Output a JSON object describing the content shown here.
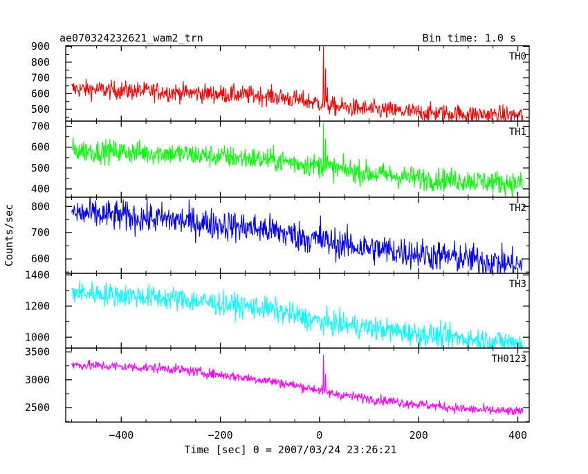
{
  "header": {
    "left": "ae070324232621_wam2_trn",
    "right": "Bin time: 1.0 s"
  },
  "chart_data": {
    "type": "line",
    "xlabel": "Time [sec] 0 = 2007/03/24 23:26:21",
    "ylabel": "Counts/sec",
    "xlim": [
      -512,
      423
    ],
    "x_ticks": [
      -400,
      -200,
      0,
      200,
      400
    ],
    "x_tick_labels": [
      "−400",
      "−200",
      "0",
      "200",
      "400"
    ],
    "grid": false,
    "panels": [
      {
        "name": "TH0",
        "color": "#ff0000",
        "ylim": [
          425,
          905
        ],
        "y_ticks": [
          500,
          600,
          700,
          800,
          900
        ],
        "y_tick_labels": [
          "500",
          "600",
          "700",
          "800",
          "900"
        ],
        "trend_start": 630,
        "trend_end": 460,
        "noise": 30,
        "anchors": [
          [
            -500,
            630
          ],
          [
            -300,
            610
          ],
          [
            -100,
            585
          ],
          [
            0,
            540
          ],
          [
            20,
            520
          ],
          [
            100,
            500
          ],
          [
            200,
            480
          ],
          [
            300,
            470
          ],
          [
            410,
            460
          ]
        ],
        "peaks": [
          [
            8,
            900
          ],
          [
            12,
            760
          ],
          [
            16,
            640
          ]
        ]
      },
      {
        "name": "TH1",
        "color": "#00ff00",
        "ylim": [
          360,
          725
        ],
        "y_ticks": [
          400,
          500,
          600,
          700
        ],
        "y_tick_labels": [
          "400",
          "500",
          "600",
          "700"
        ],
        "noise": 28,
        "anchors": [
          [
            -500,
            585
          ],
          [
            -300,
            570
          ],
          [
            -100,
            540
          ],
          [
            0,
            510
          ],
          [
            20,
            500
          ],
          [
            100,
            475
          ],
          [
            200,
            450
          ],
          [
            300,
            440
          ],
          [
            410,
            425
          ]
        ],
        "peaks": [
          [
            8,
            715
          ],
          [
            12,
            640
          ],
          [
            16,
            560
          ]
        ]
      },
      {
        "name": "TH2",
        "color": "#0000ff",
        "ylim": [
          545,
          835
        ],
        "y_ticks": [
          600,
          700,
          800
        ],
        "y_tick_labels": [
          "600",
          "700",
          "800"
        ],
        "noise": 30,
        "anchors": [
          [
            -500,
            775
          ],
          [
            -300,
            750
          ],
          [
            -100,
            710
          ],
          [
            0,
            670
          ],
          [
            100,
            640
          ],
          [
            200,
            620
          ],
          [
            300,
            600
          ],
          [
            410,
            575
          ]
        ],
        "peaks": [
          [
            2,
            765
          ]
        ]
      },
      {
        "name": "TH3",
        "color": "#00ffff",
        "ylim": [
          930,
          1410
        ],
        "y_ticks": [
          1000,
          1200,
          1400
        ],
        "y_tick_labels": [
          "1000",
          "1200",
          "1400"
        ],
        "noise": 38,
        "anchors": [
          [
            -500,
            1290
          ],
          [
            -300,
            1250
          ],
          [
            -100,
            1180
          ],
          [
            0,
            1100
          ],
          [
            100,
            1060
          ],
          [
            200,
            1020
          ],
          [
            300,
            990
          ],
          [
            410,
            960
          ]
        ],
        "peaks": []
      },
      {
        "name": "TH0123",
        "color": "#ff00ff",
        "ylim": [
          2240,
          3570
        ],
        "y_ticks": [
          2500,
          3000,
          3500
        ],
        "y_tick_labels": [
          "2500",
          "3000",
          "3500"
        ],
        "noise": 45,
        "anchors": [
          [
            -500,
            3270
          ],
          [
            -300,
            3200
          ],
          [
            -100,
            2980
          ],
          [
            0,
            2820
          ],
          [
            20,
            2760
          ],
          [
            100,
            2660
          ],
          [
            200,
            2560
          ],
          [
            300,
            2470
          ],
          [
            410,
            2420
          ]
        ],
        "peaks": [
          [
            8,
            3450
          ],
          [
            12,
            3100
          ]
        ]
      }
    ]
  }
}
